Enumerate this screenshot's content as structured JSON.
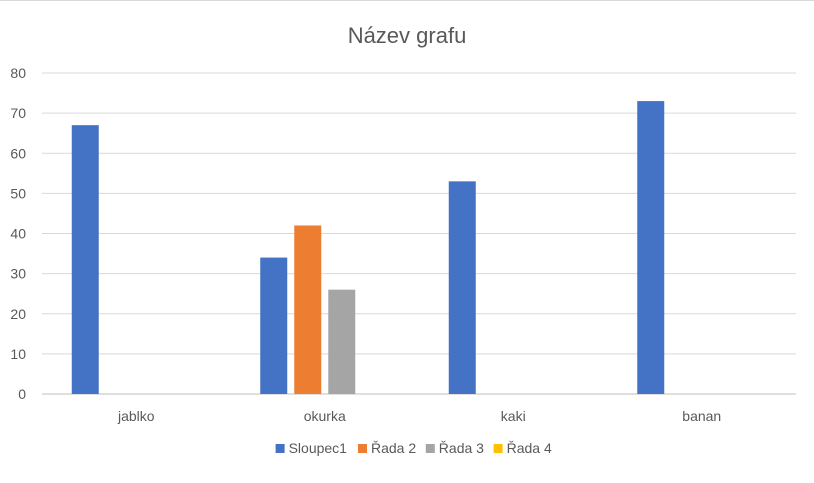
{
  "chart_data": {
    "type": "bar",
    "title": "Název grafu",
    "xlabel": "",
    "ylabel": "",
    "categories": [
      "jablko",
      "okurka",
      "kaki",
      "banan"
    ],
    "ylim": [
      0,
      80
    ],
    "yticks": [
      0,
      10,
      20,
      30,
      40,
      50,
      60,
      70,
      80
    ],
    "grid": true,
    "legend_position": "bottom",
    "series": [
      {
        "name": "Sloupec1",
        "color": "#4472C4",
        "values": [
          67,
          34,
          53,
          73
        ]
      },
      {
        "name": "Řada 2",
        "color": "#ED7D31",
        "values": [
          null,
          42,
          null,
          null
        ]
      },
      {
        "name": "Řada 3",
        "color": "#A5A5A5",
        "values": [
          null,
          26,
          null,
          null
        ]
      },
      {
        "name": "Řada 4",
        "color": "#FFC000",
        "values": [
          null,
          null,
          null,
          null
        ]
      }
    ]
  }
}
